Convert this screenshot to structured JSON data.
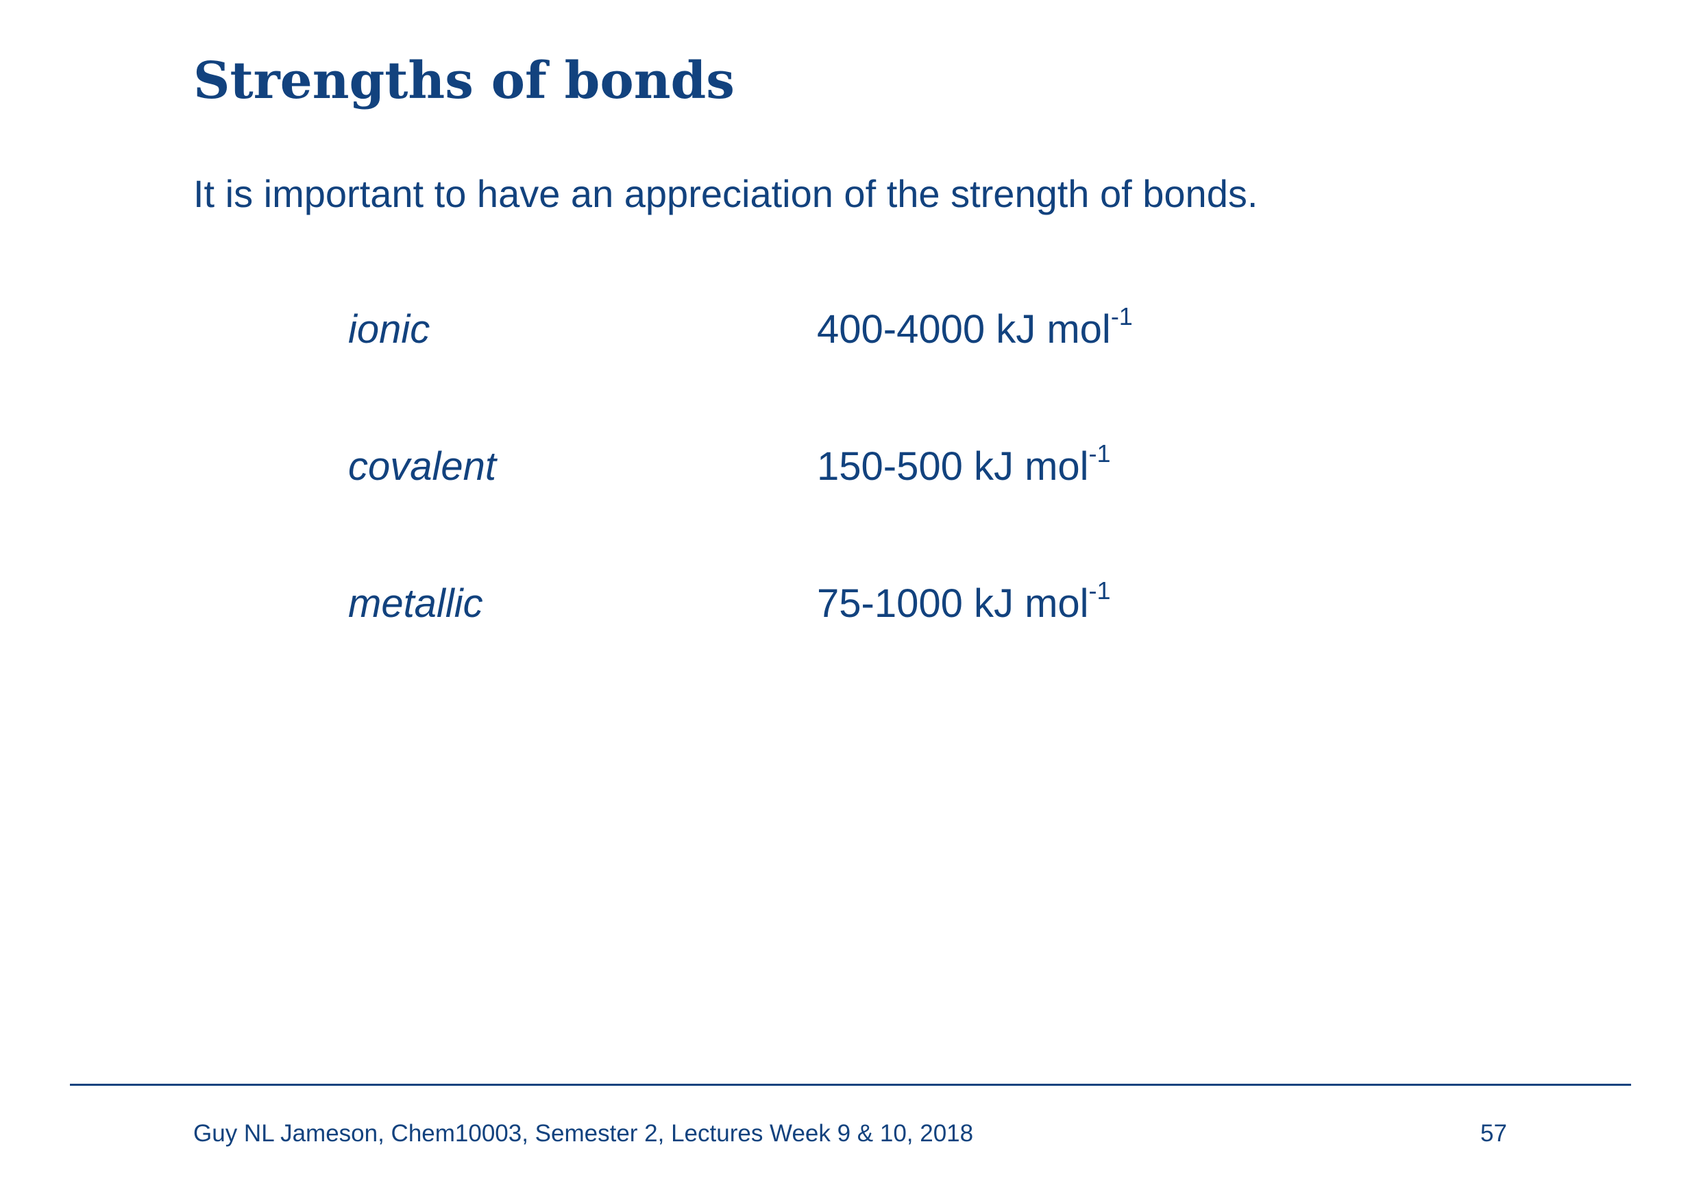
{
  "slide": {
    "title": "Strengths of bonds",
    "intro": "It is important to have an appreciation of the strength of bonds.",
    "bonds": [
      {
        "type": "ionic",
        "range": "400-4000 kJ mol",
        "exponent": "-1"
      },
      {
        "type": "covalent",
        "range": "150-500 kJ mol",
        "exponent": "-1"
      },
      {
        "type": "metallic",
        "range": "75-1000 kJ mol",
        "exponent": "-1"
      }
    ],
    "text_color": "#12427e"
  },
  "footer": {
    "text": "Guy NL Jameson, Chem10003, Semester 2, Lectures Week 9 & 10, 2018",
    "page_number": "57"
  }
}
